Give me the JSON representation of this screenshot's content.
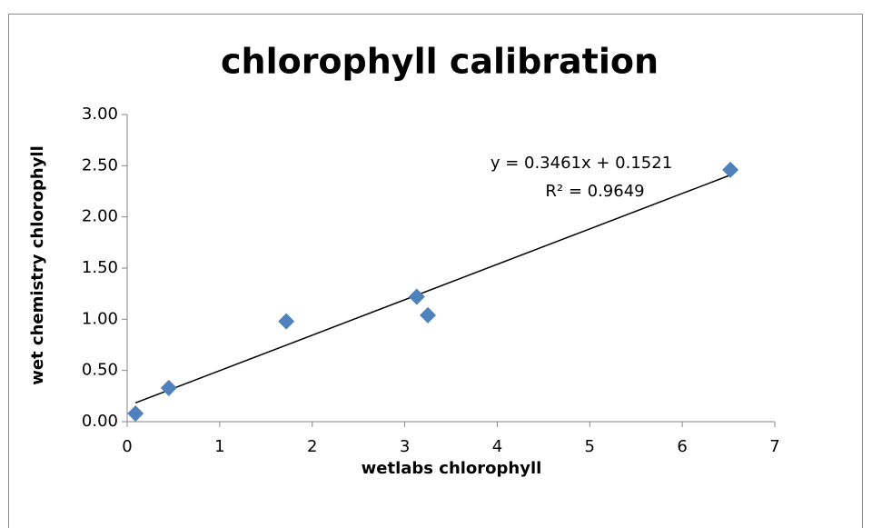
{
  "chart_data": {
    "type": "scatter",
    "title": "chlorophyll calibration",
    "x_label": "wetlabs chlorophyll",
    "y_label": "wet chemistry chlorophyll",
    "series": [
      {
        "color": "#4f81bd",
        "x": [
          0.09,
          0.45,
          1.72,
          3.13,
          3.25,
          6.52
        ],
        "values": [
          0.08,
          0.33,
          0.98,
          1.22,
          1.04,
          2.46
        ]
      }
    ],
    "trendline": {
      "slope": 0.3461,
      "intercept": 0.1521,
      "color": "#000000",
      "equation": "y = 0.3461x + 0.1521",
      "r_squared": "R² = 0.9649"
    },
    "xlim": [
      0,
      7
    ],
    "xticks": [
      0,
      1,
      2,
      3,
      4,
      5,
      6,
      7
    ],
    "ylim": [
      0,
      3
    ],
    "yticks": [
      {
        "value": 0,
        "label": "0.00"
      },
      {
        "value": 0.5,
        "label": "0.50"
      },
      {
        "value": 1,
        "label": "1.00"
      },
      {
        "value": 1.5,
        "label": "1.50"
      },
      {
        "value": 2,
        "label": "2.00"
      },
      {
        "value": 2.5,
        "label": "2.50"
      },
      {
        "value": 3,
        "label": "3.00"
      }
    ],
    "grid": false
  }
}
